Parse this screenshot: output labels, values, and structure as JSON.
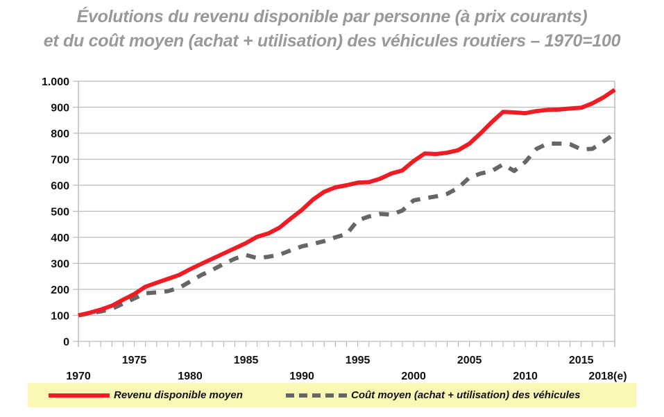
{
  "chart_data": {
    "type": "line",
    "title": "Évolutions du revenu disponible par personne (à prix courants)",
    "subtitle": "et du coût moyen (achat + utilisation) des véhicules routiers – 1970=100",
    "xlabel": "",
    "ylabel": "",
    "ylim": [
      0,
      1000
    ],
    "xlim": [
      1970,
      2018
    ],
    "grid": true,
    "legend_position": "bottom",
    "y_ticks": [
      "0",
      "100",
      "200",
      "300",
      "400",
      "500",
      "600",
      "700",
      "800",
      "900",
      "1.000"
    ],
    "y_tick_values": [
      0,
      100,
      200,
      300,
      400,
      500,
      600,
      700,
      800,
      900,
      1000
    ],
    "x_ticks_upper": [
      {
        "label": "1975",
        "value": 1975
      },
      {
        "label": "1985",
        "value": 1985
      },
      {
        "label": "1995",
        "value": 1995
      },
      {
        "label": "2005",
        "value": 2005
      },
      {
        "label": "2015",
        "value": 2015
      }
    ],
    "x_ticks_lower": [
      {
        "label": "1970",
        "value": 1970
      },
      {
        "label": "1980",
        "value": 1980
      },
      {
        "label": "1990",
        "value": 1990
      },
      {
        "label": "2000",
        "value": 2000
      },
      {
        "label": "2010",
        "value": 2010
      },
      {
        "label": "2018(e)",
        "value": 2018
      }
    ],
    "x": [
      1970,
      1971,
      1972,
      1973,
      1974,
      1975,
      1976,
      1977,
      1978,
      1979,
      1980,
      1981,
      1982,
      1983,
      1984,
      1985,
      1986,
      1987,
      1988,
      1989,
      1990,
      1991,
      1992,
      1993,
      1994,
      1995,
      1996,
      1997,
      1998,
      1999,
      2000,
      2001,
      2002,
      2003,
      2004,
      2005,
      2006,
      2007,
      2008,
      2009,
      2010,
      2011,
      2012,
      2013,
      2014,
      2015,
      2016,
      2017,
      2018
    ],
    "series": [
      {
        "name": "Revenu disponible moyen",
        "color": "#ee1c25",
        "style": "solid",
        "values": [
          100,
          110,
          122,
          137,
          160,
          182,
          210,
          225,
          240,
          255,
          277,
          298,
          318,
          338,
          358,
          378,
          402,
          415,
          437,
          472,
          505,
          545,
          575,
          592,
          600,
          610,
          612,
          625,
          645,
          657,
          693,
          722,
          720,
          725,
          735,
          760,
          800,
          843,
          882,
          880,
          877,
          885,
          890,
          891,
          895,
          898,
          915,
          938,
          967
        ]
      },
      {
        "name": "Coût moyen (achat + utilisation) des véhicules",
        "color": "#666666",
        "style": "dashed",
        "values": [
          100,
          108,
          115,
          125,
          145,
          165,
          185,
          188,
          193,
          205,
          230,
          255,
          275,
          298,
          318,
          332,
          320,
          325,
          333,
          350,
          365,
          375,
          385,
          400,
          412,
          465,
          480,
          490,
          487,
          503,
          542,
          550,
          557,
          567,
          590,
          630,
          645,
          655,
          680,
          655,
          690,
          740,
          760,
          760,
          758,
          738,
          740,
          768,
          798
        ]
      }
    ]
  }
}
